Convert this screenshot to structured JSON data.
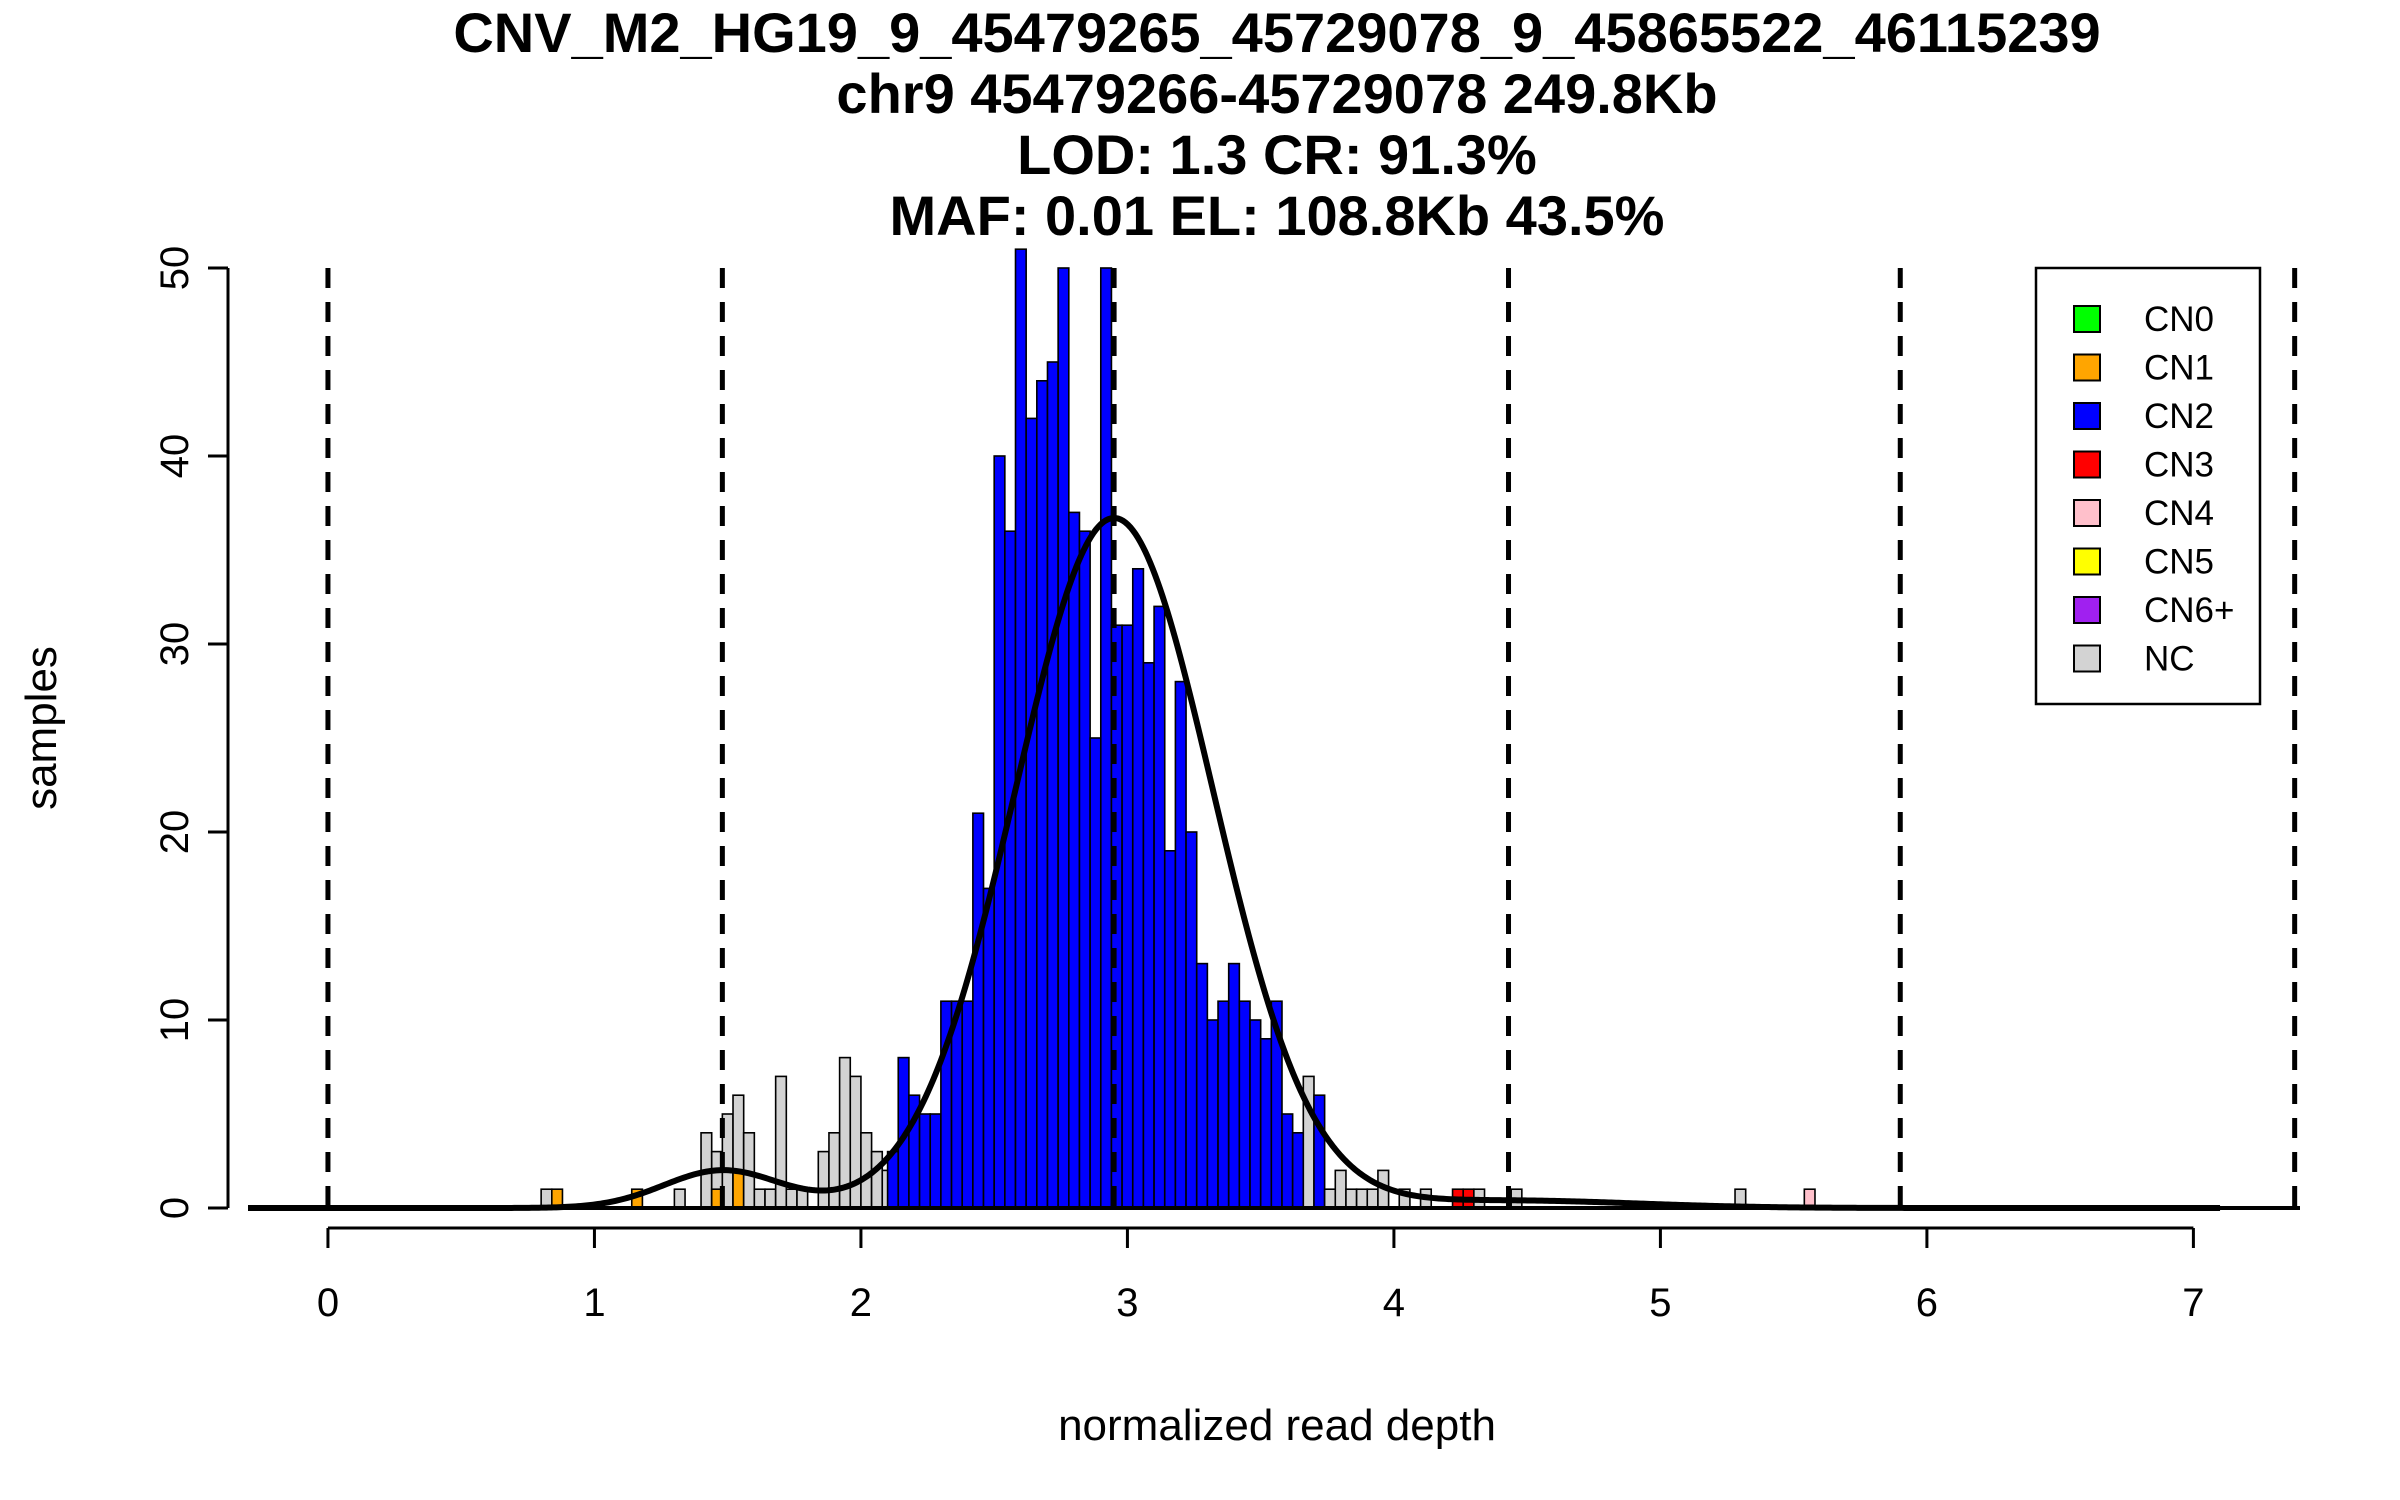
{
  "chart_data": {
    "type": "bar",
    "title_lines": [
      "CNV_M2_HG19_9_45479265_45729078_9_45865522_46115239",
      "chr9 45479266-45729078 249.8Kb",
      "LOD: 1.3 CR: 91.3%",
      "MAF: 0.01 EL: 108.8Kb 43.5%"
    ],
    "xlabel": "normalized read depth",
    "ylabel": "samples",
    "xlim": [
      -0.3,
      7.4
    ],
    "ylim": [
      0,
      50
    ],
    "x_ticks": [
      0,
      1,
      2,
      3,
      4,
      5,
      6,
      7
    ],
    "y_ticks": [
      0,
      10,
      20,
      30,
      40,
      50
    ],
    "bin_width": 0.04,
    "dashed_lines": [
      0,
      1.48,
      2.95,
      4.43,
      5.9,
      7.38
    ],
    "colors": {
      "CN0": "#00ff00",
      "CN1": "#ffa500",
      "CN2": "#0000ff",
      "CN3": "#ff0000",
      "CN4": "#ffc0cb",
      "CN5": "#ffff00",
      "CN6+": "#a020f0",
      "NC": "#d3d3d3"
    },
    "legend": {
      "position": "top-right",
      "entries": [
        "CN0",
        "CN1",
        "CN2",
        "CN3",
        "CN4",
        "CN5",
        "CN6+",
        "NC"
      ]
    },
    "bars": [
      {
        "x": 0.8,
        "count": 1,
        "cn": "NC"
      },
      {
        "x": 0.84,
        "count": 1,
        "cn": "CN1"
      },
      {
        "x": 1.14,
        "count": 1,
        "cn": "CN1"
      },
      {
        "x": 1.3,
        "count": 1,
        "cn": "NC"
      },
      {
        "x": 1.4,
        "count": 4,
        "cn": "NC"
      },
      {
        "x": 1.44,
        "count": 3,
        "cn": "NC"
      },
      {
        "x": 1.44,
        "count": 1,
        "cn": "CN1"
      },
      {
        "x": 1.48,
        "count": 5,
        "cn": "NC"
      },
      {
        "x": 1.52,
        "count": 6,
        "cn": "NC"
      },
      {
        "x": 1.52,
        "count": 2,
        "cn": "CN1"
      },
      {
        "x": 1.56,
        "count": 4,
        "cn": "NC"
      },
      {
        "x": 1.6,
        "count": 1,
        "cn": "NC"
      },
      {
        "x": 1.64,
        "count": 1,
        "cn": "NC"
      },
      {
        "x": 1.68,
        "count": 7,
        "cn": "NC"
      },
      {
        "x": 1.72,
        "count": 1,
        "cn": "NC"
      },
      {
        "x": 1.76,
        "count": 1,
        "cn": "NC"
      },
      {
        "x": 1.84,
        "count": 3,
        "cn": "NC"
      },
      {
        "x": 1.88,
        "count": 4,
        "cn": "NC"
      },
      {
        "x": 1.92,
        "count": 8,
        "cn": "NC"
      },
      {
        "x": 1.96,
        "count": 7,
        "cn": "NC"
      },
      {
        "x": 2.0,
        "count": 4,
        "cn": "NC"
      },
      {
        "x": 2.04,
        "count": 3,
        "cn": "NC"
      },
      {
        "x": 2.08,
        "count": 2,
        "cn": "NC"
      },
      {
        "x": 2.1,
        "count": 3,
        "cn": "CN2"
      },
      {
        "x": 2.14,
        "count": 8,
        "cn": "CN2"
      },
      {
        "x": 2.18,
        "count": 6,
        "cn": "CN2"
      },
      {
        "x": 2.22,
        "count": 5,
        "cn": "CN2"
      },
      {
        "x": 2.26,
        "count": 5,
        "cn": "CN2"
      },
      {
        "x": 2.3,
        "count": 11,
        "cn": "CN2"
      },
      {
        "x": 2.34,
        "count": 11,
        "cn": "CN2"
      },
      {
        "x": 2.38,
        "count": 11,
        "cn": "CN2"
      },
      {
        "x": 2.42,
        "count": 21,
        "cn": "CN2"
      },
      {
        "x": 2.46,
        "count": 17,
        "cn": "CN2"
      },
      {
        "x": 2.5,
        "count": 40,
        "cn": "CN2"
      },
      {
        "x": 2.54,
        "count": 36,
        "cn": "CN2"
      },
      {
        "x": 2.58,
        "count": 51,
        "cn": "CN2"
      },
      {
        "x": 2.62,
        "count": 42,
        "cn": "CN2"
      },
      {
        "x": 2.66,
        "count": 44,
        "cn": "CN2"
      },
      {
        "x": 2.7,
        "count": 45,
        "cn": "CN2"
      },
      {
        "x": 2.74,
        "count": 50,
        "cn": "CN2"
      },
      {
        "x": 2.78,
        "count": 37,
        "cn": "CN2"
      },
      {
        "x": 2.82,
        "count": 36,
        "cn": "CN2"
      },
      {
        "x": 2.86,
        "count": 25,
        "cn": "CN2"
      },
      {
        "x": 2.9,
        "count": 50,
        "cn": "CN2"
      },
      {
        "x": 2.94,
        "count": 31,
        "cn": "CN2"
      },
      {
        "x": 2.98,
        "count": 31,
        "cn": "CN2"
      },
      {
        "x": 3.02,
        "count": 34,
        "cn": "CN2"
      },
      {
        "x": 3.06,
        "count": 29,
        "cn": "CN2"
      },
      {
        "x": 3.1,
        "count": 32,
        "cn": "CN2"
      },
      {
        "x": 3.14,
        "count": 19,
        "cn": "CN2"
      },
      {
        "x": 3.18,
        "count": 28,
        "cn": "CN2"
      },
      {
        "x": 3.22,
        "count": 20,
        "cn": "CN2"
      },
      {
        "x": 3.26,
        "count": 13,
        "cn": "CN2"
      },
      {
        "x": 3.3,
        "count": 10,
        "cn": "CN2"
      },
      {
        "x": 3.34,
        "count": 11,
        "cn": "CN2"
      },
      {
        "x": 3.38,
        "count": 13,
        "cn": "CN2"
      },
      {
        "x": 3.42,
        "count": 11,
        "cn": "CN2"
      },
      {
        "x": 3.46,
        "count": 10,
        "cn": "CN2"
      },
      {
        "x": 3.5,
        "count": 9,
        "cn": "CN2"
      },
      {
        "x": 3.54,
        "count": 11,
        "cn": "CN2"
      },
      {
        "x": 3.58,
        "count": 5,
        "cn": "CN2"
      },
      {
        "x": 3.62,
        "count": 4,
        "cn": "CN2"
      },
      {
        "x": 3.66,
        "count": 7,
        "cn": "NC"
      },
      {
        "x": 3.7,
        "count": 6,
        "cn": "CN2"
      },
      {
        "x": 3.74,
        "count": 1,
        "cn": "NC"
      },
      {
        "x": 3.78,
        "count": 2,
        "cn": "NC"
      },
      {
        "x": 3.82,
        "count": 1,
        "cn": "NC"
      },
      {
        "x": 3.86,
        "count": 1,
        "cn": "NC"
      },
      {
        "x": 3.9,
        "count": 1,
        "cn": "NC"
      },
      {
        "x": 3.94,
        "count": 2,
        "cn": "NC"
      },
      {
        "x": 4.02,
        "count": 1,
        "cn": "NC"
      },
      {
        "x": 4.1,
        "count": 1,
        "cn": "NC"
      },
      {
        "x": 4.22,
        "count": 1,
        "cn": "CN3"
      },
      {
        "x": 4.26,
        "count": 1,
        "cn": "CN3"
      },
      {
        "x": 4.3,
        "count": 1,
        "cn": "NC"
      },
      {
        "x": 4.44,
        "count": 1,
        "cn": "NC"
      },
      {
        "x": 5.28,
        "count": 1,
        "cn": "NC"
      },
      {
        "x": 5.54,
        "count": 1,
        "cn": "CN4"
      }
    ],
    "fit_curves": [
      {
        "mean": 1.48,
        "sd": 0.22,
        "amplitude": 2.0,
        "x_range": [
          -0.3,
          7.1
        ]
      },
      {
        "mean": 2.95,
        "sd": 0.37,
        "amplitude": 36.7,
        "x_range": [
          -0.3,
          7.1
        ]
      },
      {
        "mean": 4.43,
        "sd": 0.48,
        "amplitude": 0.4,
        "x_range": [
          -0.3,
          7.1
        ]
      }
    ]
  }
}
